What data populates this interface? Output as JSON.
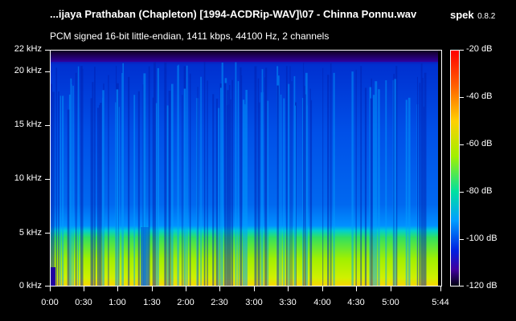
{
  "header": {
    "file_title": "...ijaya Prathaban (Chapleton) [1994-ACDRip-WAV]\\07 - Chinna Ponnu.wav",
    "app_name": "spek",
    "app_version": "0.8.2",
    "audio_info": "PCM signed 16-bit little-endian, 1411 kbps, 44100 Hz, 2 channels"
  },
  "frequency_axis": {
    "labels": [
      "22 kHz",
      "20 kHz",
      "15 kHz",
      "10 kHz",
      "5 kHz",
      "0 kHz"
    ]
  },
  "time_axis": {
    "labels": [
      "0:00",
      "0:30",
      "1:00",
      "1:30",
      "2:00",
      "2:30",
      "3:00",
      "3:30",
      "4:00",
      "4:30",
      "5:00",
      "5:44"
    ]
  },
  "db_scale": {
    "labels": [
      "-20 dB",
      "-40 dB",
      "-60 dB",
      "-80 dB",
      "-100 dB",
      "-120 dB"
    ]
  },
  "colors": {
    "background": "#000000",
    "text": "#ffffff",
    "spectrum_low": "#000030",
    "spectrum_mid": "#00c8ff",
    "spectrum_high": "#ff0000"
  }
}
